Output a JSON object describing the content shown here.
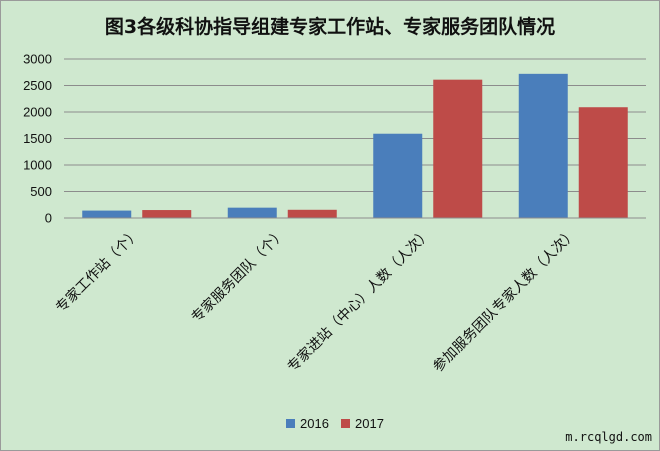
{
  "chart_data": {
    "type": "bar",
    "title": "图3各级科协指导组建专家工作站、专家服务团队情况",
    "categories": [
      "专家工作站（个）",
      "专家服务团队（个）",
      "专家进站（中心）人数（人次）",
      "参加服务团队专家人数（人次）"
    ],
    "series": [
      {
        "name": "2016",
        "color": "#4a7ebb",
        "values": [
          140,
          195,
          1590,
          2720
        ]
      },
      {
        "name": "2017",
        "color": "#be4b48",
        "values": [
          150,
          155,
          2610,
          2090
        ]
      }
    ],
    "yticks": [
      0,
      500,
      1000,
      1500,
      2000,
      2500,
      3000
    ],
    "ylim": [
      0,
      3000
    ],
    "grid": true,
    "legend_position": "bottom"
  },
  "colors": {
    "background": "#cfe8cf",
    "gridline": "#8c8c8c"
  },
  "watermark": "m.rcqlgd.com"
}
